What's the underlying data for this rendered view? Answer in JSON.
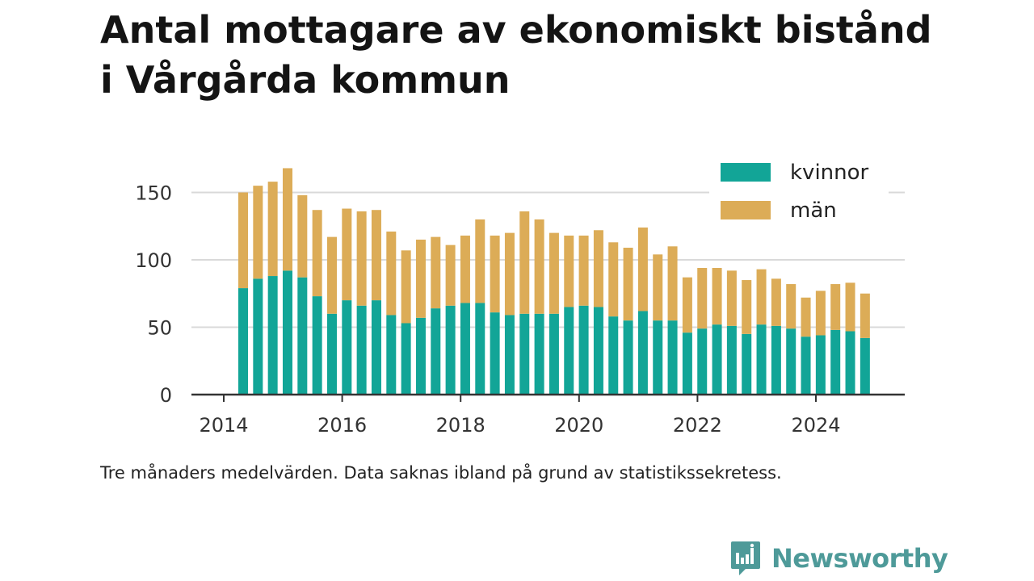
{
  "title_lines": [
    "Antal mottagare av ekonomiskt bistånd",
    "i Vårgårda kommun"
  ],
  "caption": "Tre månaders medelvärden. Data saknas ibland på grund av statistikssekretess.",
  "brand": {
    "name": "Newsworthy",
    "icon": "newsworthy-logo-icon",
    "color": "#4e9a99"
  },
  "colors": {
    "kvinnor": "#12a597",
    "man": "#dcac57",
    "grid": "#d9d9d9",
    "axis": "#333333"
  },
  "chart_data": {
    "type": "bar",
    "stacked": true,
    "x_ticks": [
      "2014",
      "2016",
      "2018",
      "2020",
      "2022",
      "2024"
    ],
    "y_ticks": [
      "0",
      "50",
      "100",
      "150"
    ],
    "ylim": [
      0,
      175
    ],
    "legend": [
      "kvinnor",
      "män"
    ],
    "legend_position": "top-right",
    "grid": true,
    "categories": [
      "2014-Q2",
      "2014-Q3",
      "2014-Q4",
      "2015-Q1",
      "2015-Q2",
      "2015-Q3",
      "2015-Q4",
      "2016-Q1",
      "2016-Q2",
      "2016-Q3",
      "2016-Q4",
      "2017-Q1",
      "2017-Q2",
      "2017-Q3",
      "2017-Q4",
      "2018-Q1",
      "2018-Q2",
      "2018-Q3",
      "2018-Q4",
      "2019-Q1",
      "2019-Q2",
      "2019-Q3",
      "2019-Q4",
      "2020-Q1",
      "2020-Q2",
      "2020-Q3",
      "2020-Q4",
      "2021-Q1",
      "2021-Q2",
      "2021-Q3",
      "2021-Q4",
      "2022-Q1",
      "2022-Q2",
      "2022-Q3",
      "2022-Q4",
      "2023-Q1",
      "2023-Q2",
      "2023-Q3",
      "2023-Q4",
      "2024-Q1",
      "2024-Q2",
      "2024-Q3",
      "2024-Q4"
    ],
    "series": [
      {
        "name": "kvinnor",
        "values": [
          79,
          86,
          88,
          92,
          87,
          73,
          60,
          70,
          66,
          70,
          59,
          53,
          57,
          64,
          66,
          68,
          68,
          61,
          59,
          60,
          60,
          60,
          65,
          66,
          65,
          58,
          55,
          62,
          55,
          55,
          46,
          49,
          52,
          51,
          45,
          52,
          51,
          49,
          43,
          44,
          48,
          47,
          42
        ]
      },
      {
        "name": "män",
        "values": [
          71,
          69,
          70,
          76,
          61,
          64,
          57,
          68,
          70,
          67,
          62,
          54,
          58,
          53,
          45,
          50,
          62,
          57,
          61,
          76,
          70,
          60,
          53,
          52,
          57,
          55,
          54,
          62,
          49,
          55,
          41,
          45,
          42,
          41,
          40,
          41,
          35,
          33,
          29,
          33,
          34,
          36,
          33
        ]
      }
    ]
  }
}
